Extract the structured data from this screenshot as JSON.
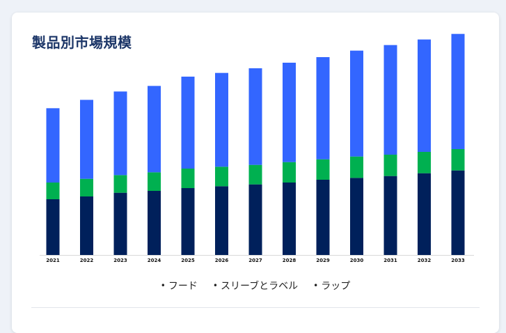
{
  "card": {
    "title": "製品別市場規模"
  },
  "chart_data": {
    "type": "bar",
    "stacked": true,
    "categories": [
      "2021",
      "2022",
      "2023",
      "2024",
      "2025",
      "2026",
      "2027",
      "2028",
      "2029",
      "2030",
      "2031",
      "2032",
      "2033"
    ],
    "series": [
      {
        "name": "フード",
        "color": "#00205b",
        "values": [
          60,
          63,
          67,
          69,
          72,
          74,
          76,
          78,
          81,
          83,
          85,
          88,
          91
        ]
      },
      {
        "name": "スリーブとラベル",
        "color": "#00b050",
        "values": [
          18,
          19,
          19,
          20,
          21,
          21,
          21,
          22,
          22,
          23,
          23,
          23,
          23
        ]
      },
      {
        "name": "ラップ",
        "color": "#3366ff",
        "values": [
          80,
          85,
          90,
          93,
          99,
          101,
          104,
          107,
          110,
          114,
          118,
          121,
          124
        ]
      }
    ],
    "ylim": [
      0,
      240
    ],
    "grid": false,
    "legend_position": "bottom"
  }
}
